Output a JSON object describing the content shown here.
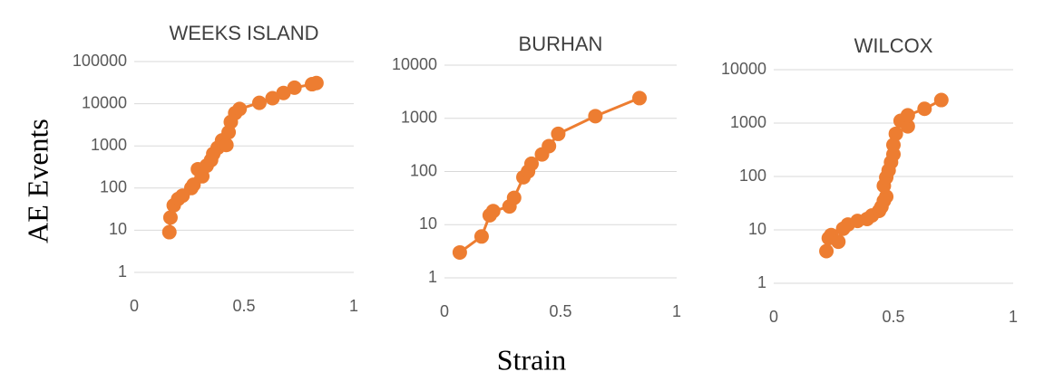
{
  "chart_data": [
    {
      "type": "line",
      "title": "WEEKS ISLAND",
      "log_y": true,
      "grid": true,
      "xlim": [
        0,
        1
      ],
      "xticks": [
        0,
        0.5,
        1
      ],
      "ylim": [
        1,
        100000
      ],
      "yticks": [
        1,
        10,
        100,
        1000,
        10000,
        100000
      ],
      "series": [
        {
          "color": "#ed7d31",
          "x": [
            0.16,
            0.165,
            0.18,
            0.2,
            0.22,
            0.26,
            0.27,
            0.29,
            0.31,
            0.33,
            0.35,
            0.36,
            0.38,
            0.4,
            0.42,
            0.43,
            0.44,
            0.46,
            0.48,
            0.57,
            0.63,
            0.68,
            0.73,
            0.81,
            0.83
          ],
          "values": [
            9,
            20,
            39,
            55,
            66,
            100,
            120,
            280,
            190,
            340,
            460,
            650,
            900,
            1350,
            1050,
            2100,
            3700,
            6000,
            7500,
            10500,
            13500,
            18000,
            24000,
            29000,
            31000
          ]
        }
      ]
    },
    {
      "type": "line",
      "title": "BURHAN",
      "log_y": true,
      "grid": true,
      "xlim": [
        0,
        1
      ],
      "xticks": [
        0,
        0.5,
        1
      ],
      "ylim": [
        1,
        10000
      ],
      "yticks": [
        1,
        10,
        100,
        1000,
        10000
      ],
      "series": [
        {
          "color": "#ed7d31",
          "x": [
            0.066,
            0.16,
            0.195,
            0.21,
            0.28,
            0.3,
            0.34,
            0.36,
            0.375,
            0.42,
            0.45,
            0.49,
            0.65,
            0.84
          ],
          "values": [
            3,
            6,
            15,
            18,
            22,
            32,
            78,
            100,
            140,
            210,
            300,
            510,
            1100,
            2400
          ]
        }
      ]
    },
    {
      "type": "line",
      "title": "WILCOX",
      "log_y": true,
      "grid": true,
      "xlim": [
        0,
        1
      ],
      "xticks": [
        0,
        0.5,
        1
      ],
      "ylim": [
        1,
        10000
      ],
      "yticks": [
        1,
        10,
        100,
        1000,
        10000
      ],
      "series": [
        {
          "color": "#ed7d31",
          "x": [
            0.22,
            0.23,
            0.24,
            0.27,
            0.29,
            0.31,
            0.35,
            0.39,
            0.41,
            0.44,
            0.45,
            0.46,
            0.47,
            0.46,
            0.47,
            0.48,
            0.49,
            0.5,
            0.5,
            0.51,
            0.53,
            0.56,
            0.56,
            0.63,
            0.7
          ],
          "values": [
            4,
            7,
            8,
            6,
            10.5,
            12.6,
            14.7,
            16,
            18.6,
            22.7,
            27,
            35,
            42,
            67,
            96,
            130,
            185,
            260,
            390,
            630,
            1100,
            870,
            1400,
            1850,
            2700
          ]
        }
      ]
    }
  ],
  "y_label": "AE Events",
  "x_label": "Strain"
}
